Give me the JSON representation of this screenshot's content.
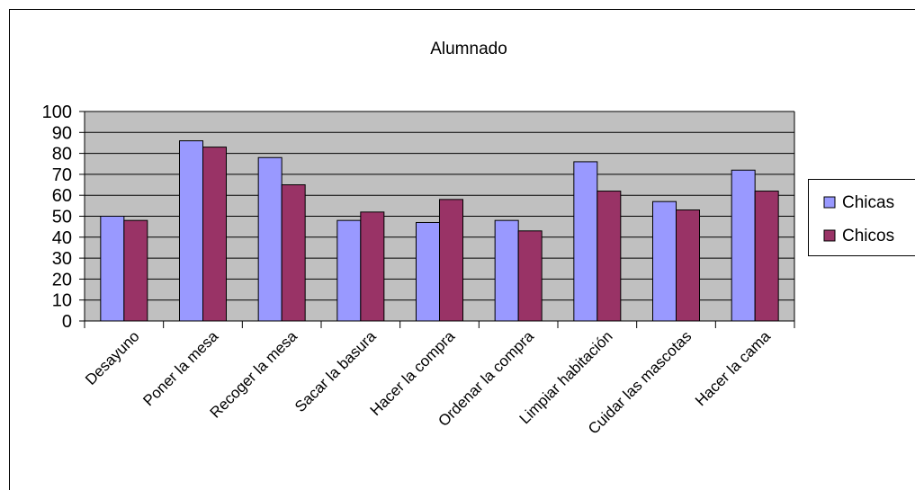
{
  "chart_data": {
    "type": "bar",
    "title": "Alumnado",
    "xlabel": "",
    "ylabel": "",
    "categories": [
      "Desayuno",
      "Poner la mesa",
      "Recoger la mesa",
      "Sacar la basura",
      "Hacer la compra",
      "Ordenar la compra",
      "Limpiar habitación",
      "Cuidar las mascotas",
      "Hacer la cama"
    ],
    "series": [
      {
        "name": "Chicas",
        "color": "#9999ff",
        "values": [
          50,
          86,
          78,
          48,
          47,
          48,
          76,
          57,
          72
        ]
      },
      {
        "name": "Chicos",
        "color": "#993366",
        "values": [
          48,
          83,
          65,
          52,
          58,
          43,
          62,
          53,
          62
        ]
      }
    ],
    "ylim": [
      0,
      100
    ],
    "yticks": [
      0,
      10,
      20,
      30,
      40,
      50,
      60,
      70,
      80,
      90,
      100
    ],
    "grid": true,
    "plot_background": "#c0c0c0",
    "legend_position": "right"
  }
}
